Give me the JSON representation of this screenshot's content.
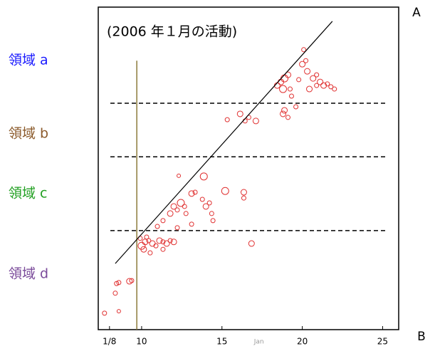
{
  "chart_data": {
    "type": "scatter",
    "title": "(2006 年１月の活動)",
    "label_top": "A",
    "label_bottom": "B",
    "annotation": {
      "text": "Jan",
      "x": 17.3
    },
    "regions": [
      {
        "label": "領域 a",
        "color": "#1a1aff"
      },
      {
        "label": "領域 b",
        "color": "#8b5a2b"
      },
      {
        "label": "領域 c",
        "color": "#22a022"
      },
      {
        "label": "領域 d",
        "color": "#7a4a9a"
      }
    ],
    "xlim": [
      7.3,
      26
    ],
    "ylim": [
      0,
      100
    ],
    "xticks": [
      {
        "value": 8,
        "label": "1/8"
      },
      10,
      15,
      20,
      25
    ],
    "color": "#e03030",
    "x": [
      7.69,
      8.58,
      8.36,
      8.44,
      8.58,
      9.24,
      9.38,
      10,
      10.22,
      10.44,
      10.13,
      10.67,
      10.89,
      11.11,
      11.33,
      11.56,
      11.78,
      12,
      10.31,
      10.53,
      9.91,
      11.33,
      16.84,
      10.98,
      11.33,
      11.78,
      12,
      12.22,
      12.44,
      12.67,
      12.76,
      13.11,
      13.33,
      13.78,
      14,
      14.22,
      14.36,
      14.44,
      15.2,
      16.36,
      16.36,
      13.87,
      12.31,
      13.11,
      12.22,
      15.33,
      16.13,
      16.44,
      16.67,
      17.11,
      18.8,
      19.11,
      18.89,
      18.44,
      18.67,
      18.89,
      19.11,
      18.8,
      19.24,
      20,
      20.22,
      20.09,
      20.31,
      20.67,
      20.89,
      21.11,
      21.33,
      21.56,
      21.78,
      22,
      20.44,
      19.78,
      20.89,
      19.33,
      19.6
    ],
    "values": [
      5.1,
      5.7,
      11.3,
      14.3,
      14.6,
      15,
      15.2,
      26,
      27.2,
      27.6,
      24.9,
      26.7,
      26,
      27.6,
      27.2,
      26.7,
      27.6,
      27.2,
      28.7,
      23.8,
      28.3,
      24.9,
      26.7,
      32,
      33.8,
      36,
      38.2,
      37.1,
      39.3,
      38.2,
      36,
      42.2,
      42.6,
      40.4,
      38.2,
      39.3,
      36,
      33.8,
      43,
      42.6,
      40.8,
      47.5,
      47.7,
      32.7,
      31.6,
      65.1,
      66.9,
      64.7,
      65.8,
      64.7,
      66.9,
      65.8,
      68,
      75.7,
      76.8,
      77.9,
      79,
      74.6,
      74.6,
      82.3,
      83.4,
      86.8,
      80.1,
      77.9,
      75.7,
      76.8,
      75.7,
      76.2,
      75.3,
      74.6,
      74.6,
      77.5,
      79,
      72.4,
      69.1
    ],
    "sizes": [
      3,
      2.5,
      3,
      3,
      3,
      4,
      3,
      5,
      4,
      3,
      4,
      4,
      3,
      4,
      3,
      4,
      3,
      4,
      3,
      3,
      3,
      3,
      4,
      3,
      3,
      4,
      4,
      3,
      5,
      3,
      3,
      4,
      3,
      3,
      4,
      3,
      3,
      3,
      5,
      4,
      3,
      5,
      2.5,
      3,
      3,
      3,
      4,
      3,
      3,
      4,
      4,
      3,
      4,
      4,
      4,
      5,
      4,
      5,
      3,
      4,
      3,
      3,
      4,
      4,
      3,
      4,
      4,
      3,
      3,
      3,
      4,
      3,
      3,
      3,
      3
    ],
    "hlines": [
      70.2,
      53.6,
      30.7
    ],
    "vline": {
      "x": 9.7,
      "y": [
        0,
        83.4
      ],
      "color": "#8b7a3a"
    },
    "fit_line": {
      "x": [
        8.36,
        21.87
      ],
      "y": [
        20.5,
        95.6
      ]
    }
  }
}
